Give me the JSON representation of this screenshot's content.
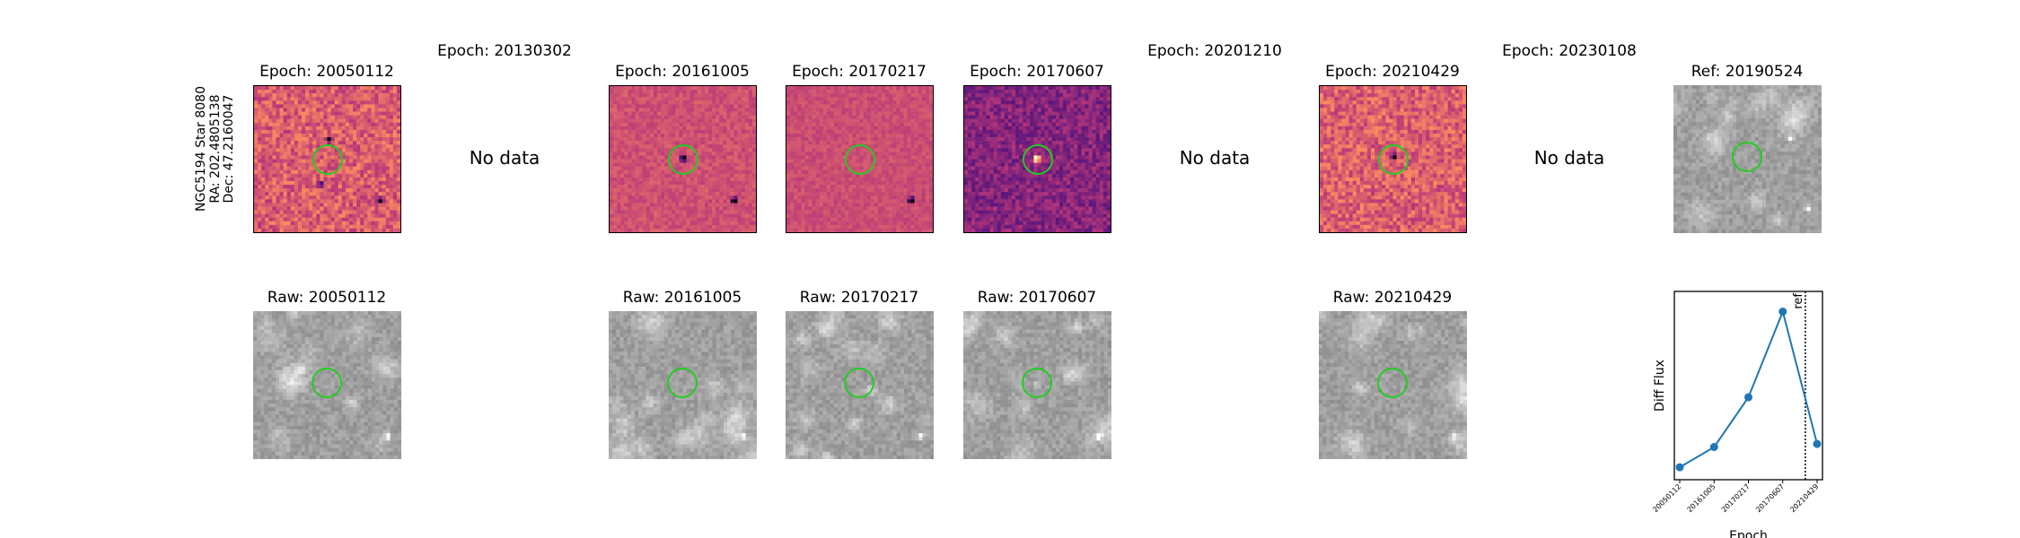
{
  "target": {
    "label": "NGC5194 Star 8080\nRA: 202.4805138\nDec: 47.2160047",
    "line1": "NGC5194 Star 8080",
    "line2": "RA: 202.4805138",
    "line3": "Dec: 47.2160047"
  },
  "epochs": [
    {
      "title": "Epoch: 20050112",
      "has_data": true,
      "raw_title": "Raw: 20050112"
    },
    {
      "title": "Epoch: 20130302",
      "has_data": false,
      "no_data_text": "No data"
    },
    {
      "title": "Epoch: 20161005",
      "has_data": true,
      "raw_title": "Raw: 20161005"
    },
    {
      "title": "Epoch: 20170217",
      "has_data": true,
      "raw_title": "Raw: 20170217"
    },
    {
      "title": "Epoch: 20170607",
      "has_data": true,
      "raw_title": "Raw: 20170607"
    },
    {
      "title": "Epoch: 20201210",
      "has_data": false,
      "no_data_text": "No data"
    },
    {
      "title": "Epoch: 20210429",
      "has_data": true,
      "raw_title": "Raw: 20210429"
    },
    {
      "title": "Epoch: 20230108",
      "has_data": false,
      "no_data_text": "No data"
    }
  ],
  "reference": {
    "title": "Ref: 20190524"
  },
  "colors": {
    "aperture": "#22cc22",
    "line": "#1f77b4",
    "diff_colormap": "magma",
    "raw_colormap": "gray"
  },
  "chart_data": {
    "type": "line",
    "xlabel": "Epoch",
    "ylabel": "Diff Flux",
    "categories": [
      "20050112",
      "20161005",
      "20170217",
      "20170607",
      "20210429"
    ],
    "values": [
      0.5,
      1.8,
      5.0,
      10.5,
      2.0
    ],
    "ylim": [
      -0.3,
      11.8
    ],
    "ref_marker": {
      "label": "ref",
      "position_between": [
        "20170607",
        "20210429"
      ],
      "style": "dotted"
    },
    "grid": false,
    "marker": "circle"
  }
}
